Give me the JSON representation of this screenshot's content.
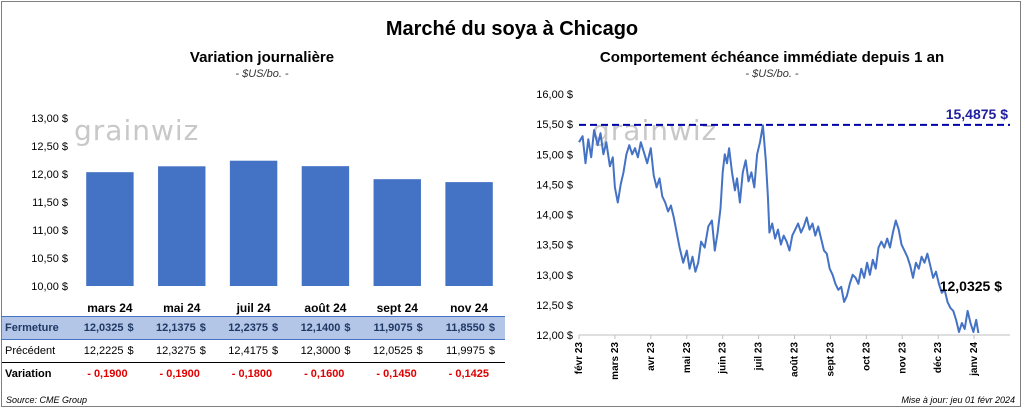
{
  "title": "Marché du soya à Chicago",
  "watermark": "grainwiz",
  "source": "Source: CME Group",
  "updated": "Mise à jour: jeu 01 févr 2024",
  "colors": {
    "bar": "#4472c4",
    "line": "#4472c4",
    "ref_line": "#0000aa",
    "ref_label": "#1f1fa0",
    "table_highlight": "#b4c6e7",
    "negative": "#e00000"
  },
  "left_panel": {
    "title": "Variation journalière",
    "subtitle": "- $US/bo. -"
  },
  "right_panel": {
    "title": "Comportement échéance immédiate depuis 1 an",
    "subtitle": "- $US/bo. -"
  },
  "table": {
    "currency": "$",
    "rows": [
      {
        "label": "Fermeture",
        "values": [
          "12,0325",
          "12,1375",
          "12,2375",
          "12,1400",
          "11,9075",
          "11,8550"
        ]
      },
      {
        "label": "Précédent",
        "values": [
          "12,2225",
          "12,3275",
          "12,4175",
          "12,3000",
          "12,0525",
          "11,9975"
        ]
      },
      {
        "label": "Variation",
        "values": [
          "- 0,1900",
          "- 0,1900",
          "- 0,1800",
          "- 0,1600",
          "- 0,1450",
          "- 0,1425"
        ]
      }
    ]
  },
  "chart_data": [
    {
      "type": "bar",
      "categories": [
        "mars 24",
        "mai 24",
        "juil 24",
        "août 24",
        "sept 24",
        "nov 24"
      ],
      "series": [
        {
          "values": [
            12.0325,
            12.1375,
            12.2375,
            12.14,
            11.9075,
            11.855
          ]
        }
      ],
      "ylim": [
        10.0,
        13.0
      ],
      "yticks": [
        10.0,
        10.5,
        11.0,
        11.5,
        12.0,
        12.5,
        13.0
      ],
      "ytick_labels": [
        "10,00 $",
        "10,50 $",
        "11,00 $",
        "11,50 $",
        "12,00 $",
        "12,50 $",
        "13,00 $"
      ],
      "grid": false
    },
    {
      "type": "line",
      "x_labels": [
        "févr 23",
        "mars 23",
        "avr 23",
        "mai 23",
        "juin 23",
        "juil 23",
        "août 23",
        "sept 23",
        "oct 23",
        "nov 23",
        "déc 23",
        "janv 24"
      ],
      "ylim": [
        12.0,
        16.0
      ],
      "yticks": [
        12.0,
        12.5,
        13.0,
        13.5,
        14.0,
        14.5,
        15.0,
        15.5,
        16.0
      ],
      "ytick_labels": [
        "12,00 $",
        "12,50 $",
        "13,00 $",
        "13,50 $",
        "14,00 $",
        "14,50 $",
        "15,00 $",
        "15,50 $",
        "16,00 $"
      ],
      "reference_line": {
        "value": 15.4875,
        "label": "15,4875 $"
      },
      "last_value_label": "12,0325 $",
      "series": [
        {
          "points": [
            [
              0.0,
              15.2
            ],
            [
              0.1,
              15.3
            ],
            [
              0.18,
              14.85
            ],
            [
              0.26,
              15.25
            ],
            [
              0.34,
              14.95
            ],
            [
              0.42,
              15.4
            ],
            [
              0.52,
              15.15
            ],
            [
              0.6,
              15.35
            ],
            [
              0.68,
              15.0
            ],
            [
              0.76,
              15.2
            ],
            [
              0.86,
              14.8
            ],
            [
              0.94,
              14.95
            ],
            [
              1.0,
              14.45
            ],
            [
              1.08,
              14.2
            ],
            [
              1.16,
              14.5
            ],
            [
              1.24,
              14.7
            ],
            [
              1.32,
              15.0
            ],
            [
              1.4,
              15.15
            ],
            [
              1.48,
              15.0
            ],
            [
              1.56,
              15.1
            ],
            [
              1.64,
              14.95
            ],
            [
              1.72,
              15.2
            ],
            [
              1.8,
              15.05
            ],
            [
              1.9,
              14.85
            ],
            [
              2.0,
              15.1
            ],
            [
              2.08,
              14.65
            ],
            [
              2.16,
              14.45
            ],
            [
              2.24,
              14.6
            ],
            [
              2.32,
              14.3
            ],
            [
              2.4,
              14.2
            ],
            [
              2.48,
              14.05
            ],
            [
              2.56,
              14.15
            ],
            [
              2.64,
              13.95
            ],
            [
              2.72,
              13.7
            ],
            [
              2.8,
              13.45
            ],
            [
              2.9,
              13.2
            ],
            [
              3.0,
              13.4
            ],
            [
              3.08,
              13.1
            ],
            [
              3.16,
              13.3
            ],
            [
              3.24,
              13.05
            ],
            [
              3.32,
              13.2
            ],
            [
              3.4,
              13.55
            ],
            [
              3.5,
              13.45
            ],
            [
              3.6,
              13.8
            ],
            [
              3.7,
              13.9
            ],
            [
              3.78,
              13.4
            ],
            [
              3.86,
              13.7
            ],
            [
              3.94,
              14.1
            ],
            [
              4.0,
              14.7
            ],
            [
              4.06,
              15.0
            ],
            [
              4.12,
              14.85
            ],
            [
              4.18,
              15.1
            ],
            [
              4.26,
              14.7
            ],
            [
              4.34,
              14.4
            ],
            [
              4.4,
              14.6
            ],
            [
              4.48,
              14.2
            ],
            [
              4.56,
              14.7
            ],
            [
              4.64,
              14.9
            ],
            [
              4.72,
              14.55
            ],
            [
              4.8,
              14.7
            ],
            [
              4.88,
              14.45
            ],
            [
              4.96,
              15.0
            ],
            [
              5.04,
              15.2
            ],
            [
              5.12,
              15.48
            ],
            [
              5.2,
              14.9
            ],
            [
              5.26,
              14.3
            ],
            [
              5.3,
              13.7
            ],
            [
              5.38,
              13.85
            ],
            [
              5.46,
              13.6
            ],
            [
              5.54,
              13.75
            ],
            [
              5.62,
              13.5
            ],
            [
              5.7,
              13.65
            ],
            [
              5.78,
              13.55
            ],
            [
              5.86,
              13.4
            ],
            [
              5.94,
              13.65
            ],
            [
              6.02,
              13.75
            ],
            [
              6.1,
              13.85
            ],
            [
              6.18,
              13.7
            ],
            [
              6.26,
              13.8
            ],
            [
              6.34,
              13.95
            ],
            [
              6.42,
              13.75
            ],
            [
              6.5,
              13.85
            ],
            [
              6.58,
              13.65
            ],
            [
              6.66,
              13.8
            ],
            [
              6.74,
              13.6
            ],
            [
              6.82,
              13.4
            ],
            [
              6.9,
              13.35
            ],
            [
              6.98,
              13.1
            ],
            [
              7.06,
              13.0
            ],
            [
              7.14,
              12.85
            ],
            [
              7.22,
              12.75
            ],
            [
              7.3,
              12.8
            ],
            [
              7.38,
              12.55
            ],
            [
              7.46,
              12.65
            ],
            [
              7.54,
              12.85
            ],
            [
              7.62,
              13.0
            ],
            [
              7.7,
              12.95
            ],
            [
              7.78,
              12.85
            ],
            [
              7.86,
              13.1
            ],
            [
              7.94,
              12.95
            ],
            [
              8.02,
              13.2
            ],
            [
              8.1,
              13.0
            ],
            [
              8.18,
              13.25
            ],
            [
              8.26,
              13.1
            ],
            [
              8.34,
              13.45
            ],
            [
              8.42,
              13.55
            ],
            [
              8.5,
              13.45
            ],
            [
              8.58,
              13.6
            ],
            [
              8.66,
              13.45
            ],
            [
              8.74,
              13.7
            ],
            [
              8.82,
              13.9
            ],
            [
              8.9,
              13.75
            ],
            [
              8.98,
              13.5
            ],
            [
              9.06,
              13.4
            ],
            [
              9.14,
              13.3
            ],
            [
              9.22,
              13.15
            ],
            [
              9.3,
              12.95
            ],
            [
              9.38,
              13.2
            ],
            [
              9.46,
              13.1
            ],
            [
              9.54,
              13.3
            ],
            [
              9.62,
              13.2
            ],
            [
              9.7,
              13.35
            ],
            [
              9.78,
              13.15
            ],
            [
              9.86,
              12.95
            ],
            [
              9.94,
              13.05
            ],
            [
              10.02,
              12.85
            ],
            [
              10.1,
              12.7
            ],
            [
              10.18,
              12.75
            ],
            [
              10.26,
              12.55
            ],
            [
              10.34,
              12.45
            ],
            [
              10.42,
              12.4
            ],
            [
              10.5,
              12.25
            ],
            [
              10.58,
              12.05
            ],
            [
              10.66,
              12.2
            ],
            [
              10.74,
              12.1
            ],
            [
              10.82,
              12.4
            ],
            [
              10.9,
              12.2
            ],
            [
              10.98,
              12.05
            ],
            [
              11.06,
              12.25
            ],
            [
              11.12,
              12.0325
            ]
          ]
        }
      ]
    }
  ]
}
